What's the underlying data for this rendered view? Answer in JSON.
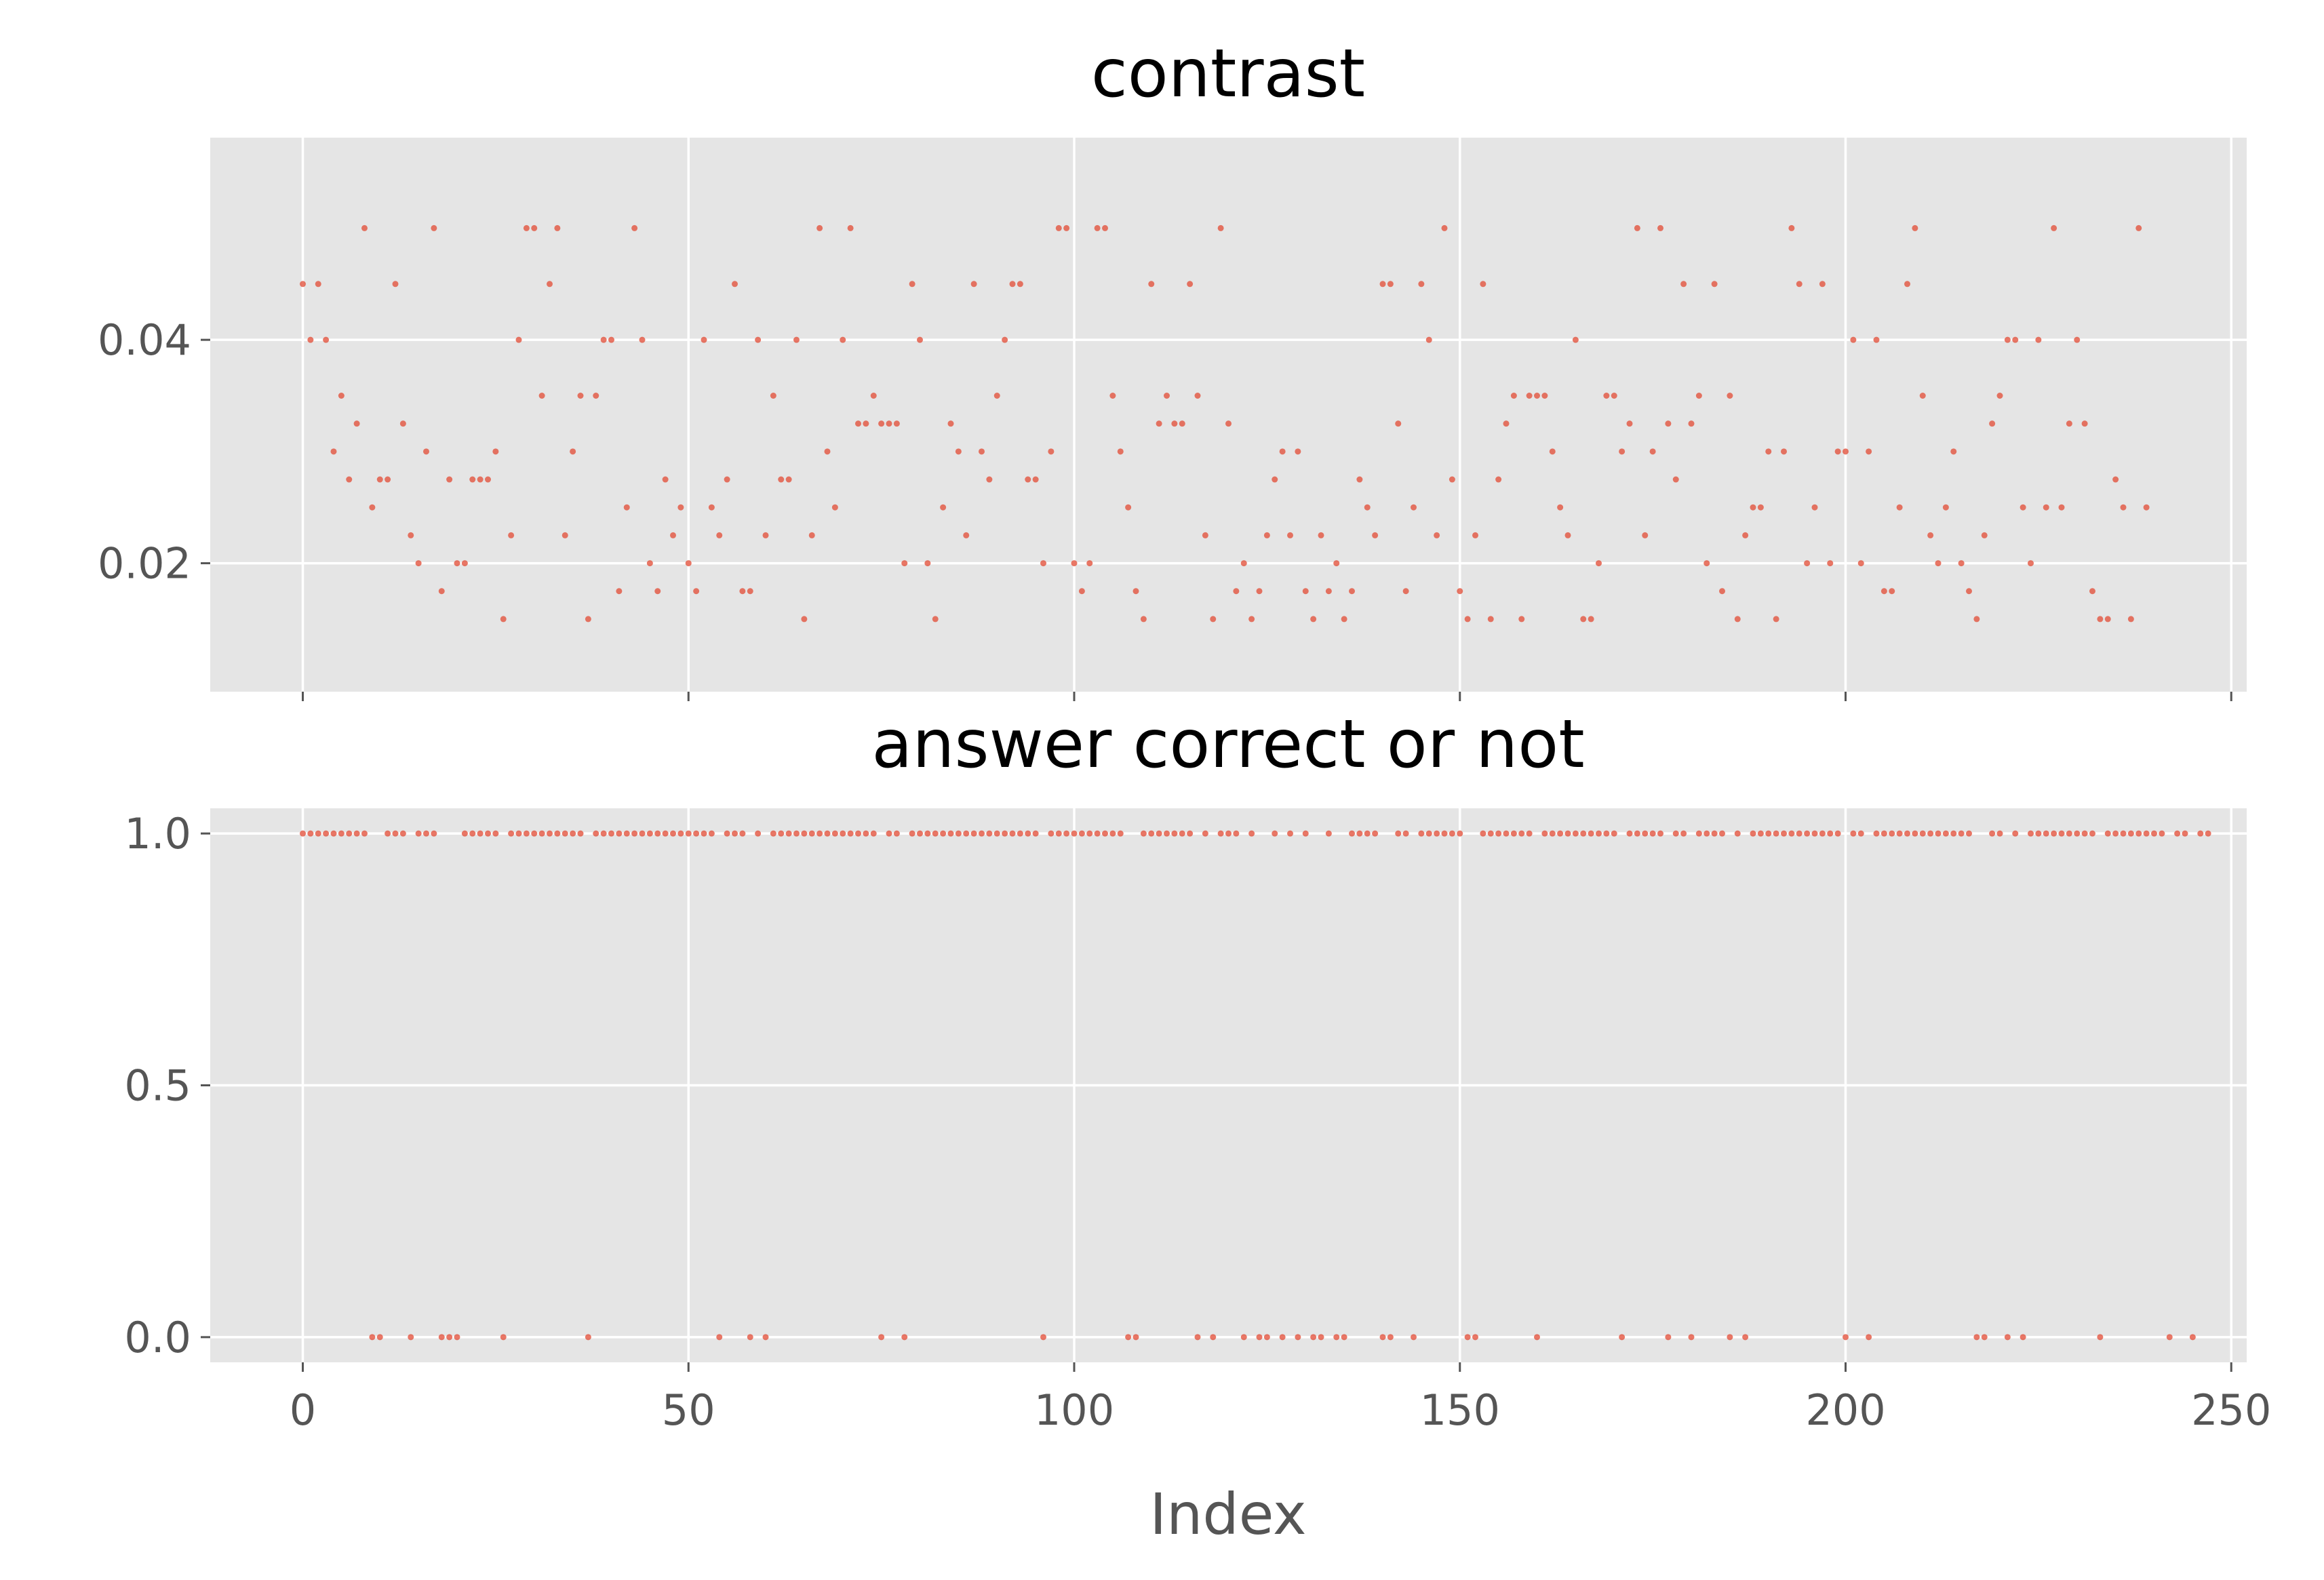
{
  "chart_data": [
    {
      "type": "scatter",
      "title": "contrast",
      "xlabel": "",
      "ylabel": "",
      "xlim": [
        -12,
        252
      ],
      "ylim": [
        0.0085,
        0.0581
      ],
      "x_ticks": [
        0,
        50,
        100,
        150,
        200,
        250
      ],
      "y_ticks": [
        0.02,
        0.04
      ],
      "y_tick_labels": [
        "0.02",
        "0.04"
      ],
      "grid": true,
      "background": "#e5e5e5",
      "marker_color": "#e24a33",
      "x_start": 0,
      "values": [
        0.045,
        0.04,
        0.045,
        0.04,
        0.03,
        0.035,
        0.0275,
        0.0325,
        0.05,
        0.025,
        0.0275,
        0.0275,
        0.045,
        0.0325,
        0.0225,
        0.02,
        0.03,
        0.05,
        0.0175,
        0.0275,
        0.02,
        0.02,
        0.0275,
        0.0275,
        0.0275,
        0.03,
        0.015,
        0.0225,
        0.04,
        0.05,
        0.05,
        0.035,
        0.045,
        0.05,
        0.0225,
        0.03,
        0.035,
        0.015,
        0.035,
        0.04,
        0.04,
        0.0175,
        0.025,
        0.05,
        0.04,
        0.02,
        0.0175,
        0.0275,
        0.0225,
        0.025,
        0.02,
        0.0175,
        0.04,
        0.025,
        0.0225,
        0.0275,
        0.045,
        0.0175,
        0.0175,
        0.04,
        0.0225,
        0.035,
        0.0275,
        0.0275,
        0.04,
        0.015,
        0.0225,
        0.05,
        0.03,
        0.025,
        0.04,
        0.05,
        0.0325,
        0.0325,
        0.035,
        0.0325,
        0.0325,
        0.0325,
        0.02,
        0.045,
        0.04,
        0.02,
        0.015,
        0.025,
        0.0325,
        0.03,
        0.0225,
        0.045,
        0.03,
        0.0275,
        0.035,
        0.04,
        0.045,
        0.045,
        0.0275,
        0.0275,
        0.02,
        0.03,
        0.05,
        0.05,
        0.02,
        0.0175,
        0.02,
        0.05,
        0.05,
        0.035,
        0.03,
        0.025,
        0.0175,
        0.015,
        0.045,
        0.0325,
        0.035,
        0.0325,
        0.0325,
        0.045,
        0.035,
        0.0225,
        0.015,
        0.05,
        0.0325,
        0.0175,
        0.02,
        0.015,
        0.0175,
        0.0225,
        0.0275,
        0.03,
        0.0225,
        0.03,
        0.0175,
        0.015,
        0.0225,
        0.0175,
        0.02,
        0.015,
        0.0175,
        0.0275,
        0.025,
        0.0225,
        0.045,
        0.045,
        0.0325,
        0.0175,
        0.025,
        0.045,
        0.04,
        0.0225,
        0.05,
        0.0275,
        0.0175,
        0.015,
        0.0225,
        0.045,
        0.015,
        0.0275,
        0.0325,
        0.035,
        0.015,
        0.035,
        0.035,
        0.035,
        0.03,
        0.025,
        0.0225,
        0.04,
        0.015,
        0.015,
        0.02,
        0.035,
        0.035,
        0.03,
        0.0325,
        0.05,
        0.0225,
        0.03,
        0.05,
        0.0325,
        0.0275,
        0.045,
        0.0325,
        0.035,
        0.02,
        0.045,
        0.0175,
        0.035,
        0.015,
        0.0225,
        0.025,
        0.025,
        0.03,
        0.015,
        0.03,
        0.05,
        0.045,
        0.02,
        0.025,
        0.045,
        0.02,
        0.03,
        0.03,
        0.04,
        0.02,
        0.03,
        0.04,
        0.0175,
        0.0175,
        0.025,
        0.045,
        0.05,
        0.035,
        0.0225,
        0.02,
        0.025,
        0.03,
        0.02,
        0.0175,
        0.015,
        0.0225,
        0.0325,
        0.035,
        0.04,
        0.04,
        0.025,
        0.02,
        0.04,
        0.025,
        0.05,
        0.025,
        0.0325,
        0.04,
        0.0325,
        0.0175,
        0.015,
        0.015,
        0.0275,
        0.025,
        0.015,
        0.05,
        0.025
      ]
    },
    {
      "type": "scatter",
      "title": "answer correct or not",
      "xlabel": "Index",
      "ylabel": "",
      "xlim": [
        -12,
        252
      ],
      "ylim": [
        -0.05,
        1.05
      ],
      "x_ticks": [
        0,
        50,
        100,
        150,
        200,
        250
      ],
      "y_ticks": [
        0.0,
        0.5,
        1.0
      ],
      "y_tick_labels": [
        "0.0",
        "0.5",
        "1.0"
      ],
      "grid": true,
      "background": "#e5e5e5",
      "marker_color": "#e24a33",
      "x_start": 0,
      "values": [
        1,
        1,
        1,
        1,
        1,
        1,
        1,
        1,
        1,
        0,
        0,
        1,
        1,
        1,
        0,
        1,
        1,
        1,
        0,
        0,
        0,
        1,
        1,
        1,
        1,
        1,
        0,
        1,
        1,
        1,
        1,
        1,
        1,
        1,
        1,
        1,
        1,
        0,
        1,
        1,
        1,
        1,
        1,
        1,
        1,
        1,
        1,
        1,
        1,
        1,
        1,
        1,
        1,
        1,
        0,
        1,
        1,
        1,
        0,
        1,
        0,
        1,
        1,
        1,
        1,
        1,
        1,
        1,
        1,
        1,
        1,
        1,
        1,
        1,
        1,
        0,
        1,
        1,
        0,
        1,
        1,
        1,
        1,
        1,
        1,
        1,
        1,
        1,
        1,
        1,
        1,
        1,
        1,
        1,
        1,
        1,
        0,
        1,
        1,
        1,
        1,
        1,
        1,
        1,
        1,
        1,
        1,
        0,
        0,
        1,
        1,
        1,
        1,
        1,
        1,
        1,
        0,
        1,
        0,
        1,
        1,
        1,
        0,
        1,
        0,
        0,
        1,
        0,
        1,
        0,
        1,
        0,
        0,
        1,
        0,
        0,
        1,
        1,
        1,
        1,
        0,
        0,
        1,
        1,
        0,
        1,
        1,
        1,
        1,
        1,
        1,
        0,
        0,
        1,
        1,
        1,
        1,
        1,
        1,
        1,
        0,
        1,
        1,
        1,
        1,
        1,
        1,
        1,
        1,
        1,
        1,
        0,
        1,
        1,
        1,
        1,
        1,
        0,
        1,
        1,
        0,
        1,
        1,
        1,
        1,
        0,
        1,
        0,
        1,
        1,
        1,
        1,
        1,
        1,
        1,
        1,
        1,
        1,
        1,
        1,
        0,
        1,
        1,
        0,
        1,
        1,
        1,
        1,
        1,
        1,
        1,
        1,
        1,
        1,
        1,
        1,
        1,
        0,
        0,
        1,
        1,
        0,
        1,
        0,
        1,
        1,
        1,
        1,
        1,
        1,
        1,
        1,
        1,
        0,
        1,
        1,
        1,
        1,
        1,
        1,
        1,
        1,
        0,
        1,
        1,
        0,
        1,
        1
      ]
    }
  ]
}
